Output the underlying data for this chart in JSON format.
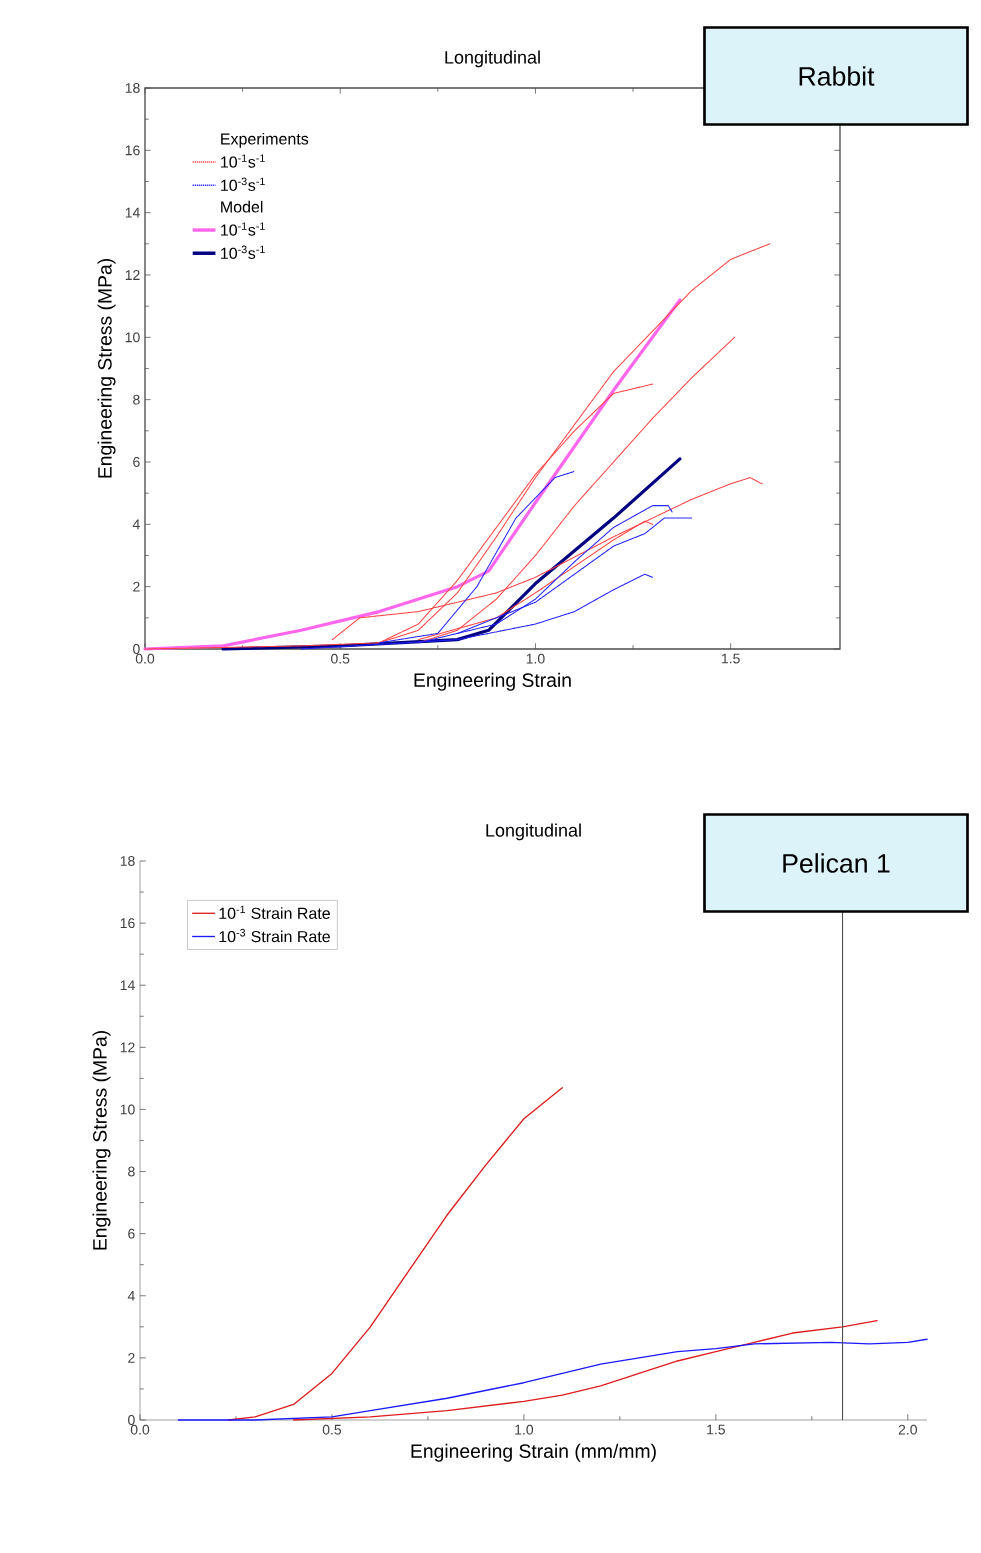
{
  "chart_data": [
    {
      "type": "line",
      "title": "Longitudinal",
      "xlabel": "Engineering Strain",
      "ylabel": "Engineering Stress (MPa)",
      "annotations": [
        "Experiments",
        "Model",
        "Rabbit"
      ],
      "xlim": [
        0,
        1.78
      ],
      "ylim": [
        0,
        18
      ],
      "xticks": [
        {
          "value": 0,
          "label": "0.0"
        },
        {
          "value": 0.5,
          "label": "0.5"
        },
        {
          "value": 1,
          "label": "1.0"
        },
        {
          "value": 1.5,
          "label": "1.5"
        }
      ],
      "yticks": [
        0,
        2,
        4,
        6,
        8,
        10,
        12,
        14,
        16,
        18
      ],
      "legend": "top left",
      "series": [
        {
          "name": "10$^{-1}$s$^{-1}$",
          "color": "#ff4040",
          "line_style": "dotted",
          "x": [
            0,
            0.4,
            0.6,
            0.7,
            0.8,
            0.9,
            1.0,
            1.2,
            1.4,
            1.5,
            1.6
          ],
          "values": [
            0,
            0.1,
            0.2,
            0.6,
            1.8,
            3.6,
            5.5,
            8.9,
            11.5,
            12.5,
            13.0
          ]
        },
        {
          "name": "10$^{-3}$s$^{-1}$",
          "color": "#2020ff",
          "line_style": "dotted",
          "x": [
            0.6,
            0.75,
            0.85,
            0.95,
            1.05,
            1.1
          ],
          "values": [
            0.2,
            0.5,
            2.0,
            4.2,
            5.5,
            5.7
          ]
        },
        {
          "name": "10$^{-1}$s$^{-1}$",
          "color": "#ff66ee",
          "line_style": "solid",
          "x": [
            0,
            0.2,
            0.4,
            0.6,
            0.8,
            0.88,
            1.0,
            1.2,
            1.37
          ],
          "values": [
            0,
            0.1,
            0.6,
            1.2,
            2.0,
            2.5,
            4.7,
            8.3,
            11.2
          ]
        },
        {
          "name": "10$^{-3}$s$^{-1}$",
          "color": "#000080",
          "line_style": "solid",
          "x": [
            0.2,
            0.5,
            0.8,
            0.88,
            1.0,
            1.2,
            1.37
          ],
          "values": [
            0,
            0.1,
            0.3,
            0.6,
            2.1,
            4.2,
            6.1
          ]
        },
        {
          "color": "#ff4040",
          "line_style": "dotted",
          "x": [
            0.6,
            0.7,
            0.8,
            0.9,
            1.0,
            1.1,
            1.2,
            1.3
          ],
          "values": [
            0.2,
            0.8,
            2.2,
            3.9,
            5.6,
            7.0,
            8.2,
            8.5
          ]
        },
        {
          "color": "#ff4040",
          "line_style": "dotted",
          "x": [
            0.7,
            0.8,
            0.9,
            1.0,
            1.1,
            1.2,
            1.3,
            1.4,
            1.51
          ],
          "values": [
            0.2,
            0.6,
            1.6,
            3.0,
            4.6,
            6.0,
            7.4,
            8.7,
            10.0
          ]
        },
        {
          "color": "#ff4040",
          "line_style": "dotted",
          "x": [
            0.48,
            0.52,
            0.55,
            0.7,
            0.8,
            0.9,
            1.0,
            1.2,
            1.3,
            1.4,
            1.5,
            1.55,
            1.58
          ],
          "values": [
            0.3,
            0.7,
            1.0,
            1.2,
            1.5,
            1.8,
            2.3,
            3.6,
            4.2,
            4.8,
            5.3,
            5.5,
            5.3
          ]
        },
        {
          "color": "#ff4040",
          "line_style": "dotted",
          "x": [
            0.7,
            0.9,
            1.0,
            1.2,
            1.28,
            1.3
          ],
          "values": [
            0.3,
            1.0,
            1.8,
            3.5,
            4.1,
            4.0
          ]
        },
        {
          "color": "#2020ff",
          "line_style": "dotted",
          "x": [
            0.7,
            0.9,
            1.0,
            1.1,
            1.2,
            1.3,
            1.34,
            1.35
          ],
          "values": [
            0.2,
            0.8,
            1.6,
            2.8,
            3.9,
            4.6,
            4.6,
            4.4
          ]
        },
        {
          "color": "#2020ff",
          "line_style": "dotted",
          "x": [
            0.8,
            1.0,
            1.2,
            1.28,
            1.33,
            1.38,
            1.4
          ],
          "values": [
            0.5,
            1.5,
            3.3,
            3.7,
            4.2,
            4.2,
            4.2
          ]
        },
        {
          "color": "#2020ff",
          "line_style": "dotted",
          "x": [
            0.4,
            0.8,
            1.0,
            1.1,
            1.2,
            1.28,
            1.3
          ],
          "values": [
            0,
            0.3,
            0.8,
            1.2,
            1.9,
            2.4,
            2.3
          ]
        }
      ]
    },
    {
      "type": "line",
      "title": "Longitudinal",
      "xlabel": "Engineering Strain (mm/mm)",
      "ylabel": "Engineering Stress (MPa)",
      "annotations": [
        "Pelican 1"
      ],
      "xlim": [
        0,
        2.05
      ],
      "ylim": [
        0,
        18
      ],
      "xticks": [
        {
          "value": 0,
          "label": "0.0"
        },
        {
          "value": 0.5,
          "label": "0.5"
        },
        {
          "value": 1,
          "label": "1.0"
        },
        {
          "value": 1.5,
          "label": "1.5"
        },
        {
          "value": 2,
          "label": "2.0"
        }
      ],
      "yticks": [
        0,
        2,
        4,
        6,
        8,
        10,
        12,
        14,
        16,
        18
      ],
      "legend": "top left",
      "ref_lines": [
        {
          "axis": "x",
          "value": 1.83
        }
      ],
      "series": [
        {
          "name": "10$^{-1}$ Strain Rate",
          "color": "#dd1c1c",
          "x": [
            0.23,
            0.3,
            0.4,
            0.5,
            0.6,
            0.7,
            0.8,
            0.9,
            1.0,
            1.1
          ],
          "values": [
            0,
            0.1,
            0.5,
            1.5,
            3.0,
            4.8,
            6.6,
            8.2,
            9.7,
            10.7
          ]
        },
        {
          "name": "10$^{-3}$ Strain Rate",
          "color": "#1a1aff",
          "x": [
            0.1,
            0.3,
            0.5,
            0.6,
            0.8,
            1.0,
            1.1,
            1.2,
            1.3,
            1.4,
            1.5,
            1.6,
            1.8,
            1.9,
            2.0,
            2.05
          ],
          "values": [
            0,
            0,
            0.1,
            0.3,
            0.7,
            1.2,
            1.5,
            1.8,
            2.0,
            2.2,
            2.3,
            2.45,
            2.5,
            2.45,
            2.5,
            2.6
          ]
        },
        {
          "color": "#dd1c1c",
          "x": [
            0.4,
            0.6,
            0.8,
            1.0,
            1.1,
            1.2,
            1.3,
            1.4,
            1.5,
            1.6,
            1.7,
            1.83,
            1.92
          ],
          "values": [
            0,
            0.1,
            0.3,
            0.6,
            0.8,
            1.1,
            1.5,
            1.9,
            2.2,
            2.5,
            2.8,
            3.0,
            3.2
          ]
        }
      ]
    }
  ]
}
